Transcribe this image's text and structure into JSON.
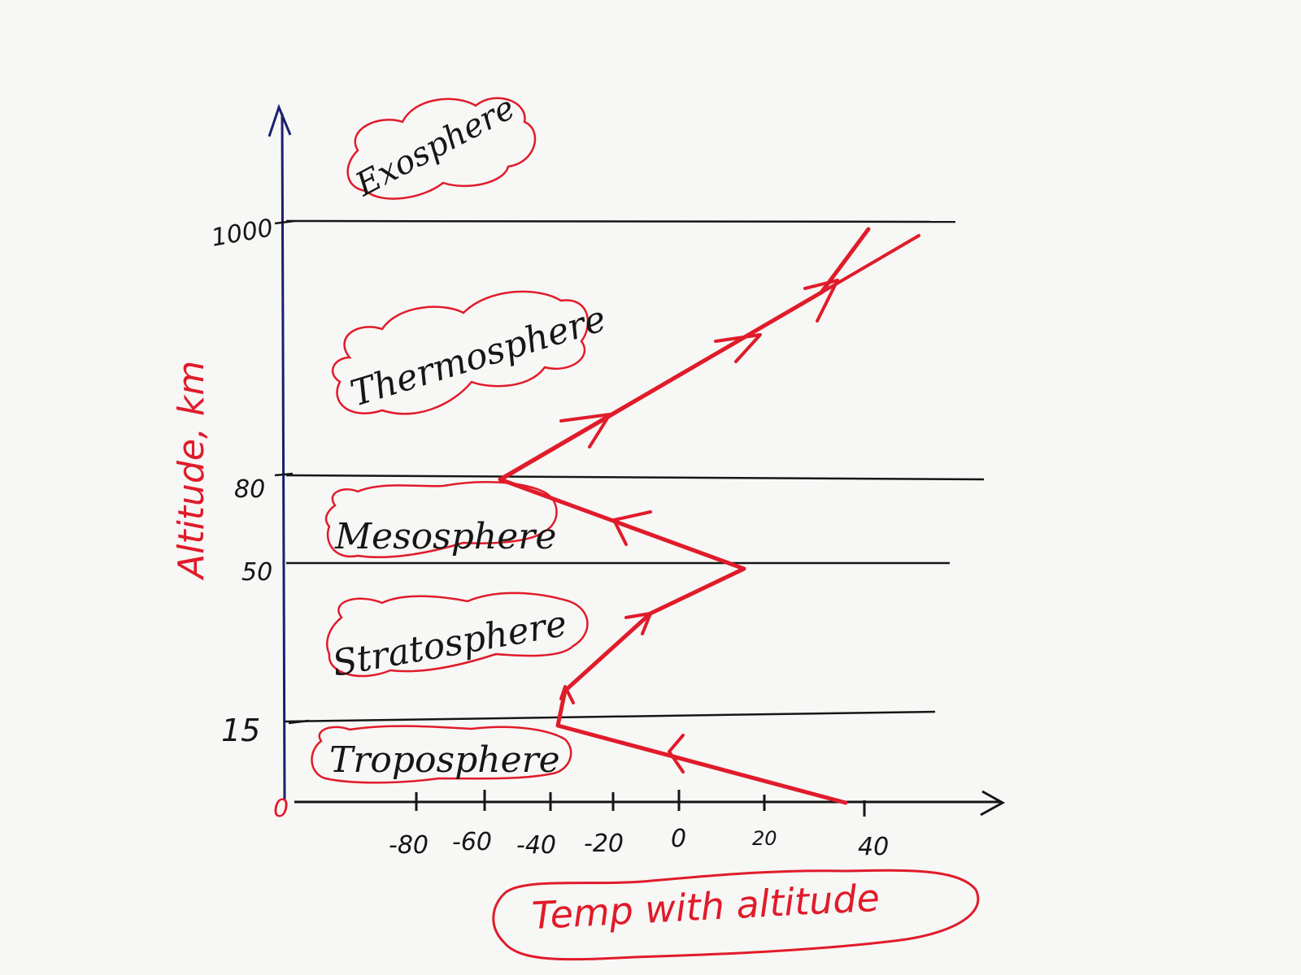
{
  "diagram": {
    "axis_title_y": "Altitude, km",
    "caption": "Temp with altitude",
    "origin_label": "0",
    "y_ticks": [
      "1000",
      "80",
      "50",
      "15"
    ],
    "x_ticks": [
      "-80",
      "-60",
      "-40",
      "-20",
      "0",
      "20",
      "40"
    ],
    "layers": [
      {
        "name": "Exosphere"
      },
      {
        "name": "Thermosphere"
      },
      {
        "name": "Mesosphere"
      },
      {
        "name": "Stratosphere"
      },
      {
        "name": "Troposphere"
      }
    ],
    "colors": {
      "profile": "#e01b2a",
      "axis_y": "#1b1f6e",
      "lines": "#161616",
      "paper": "#f7f7f5"
    }
  }
}
